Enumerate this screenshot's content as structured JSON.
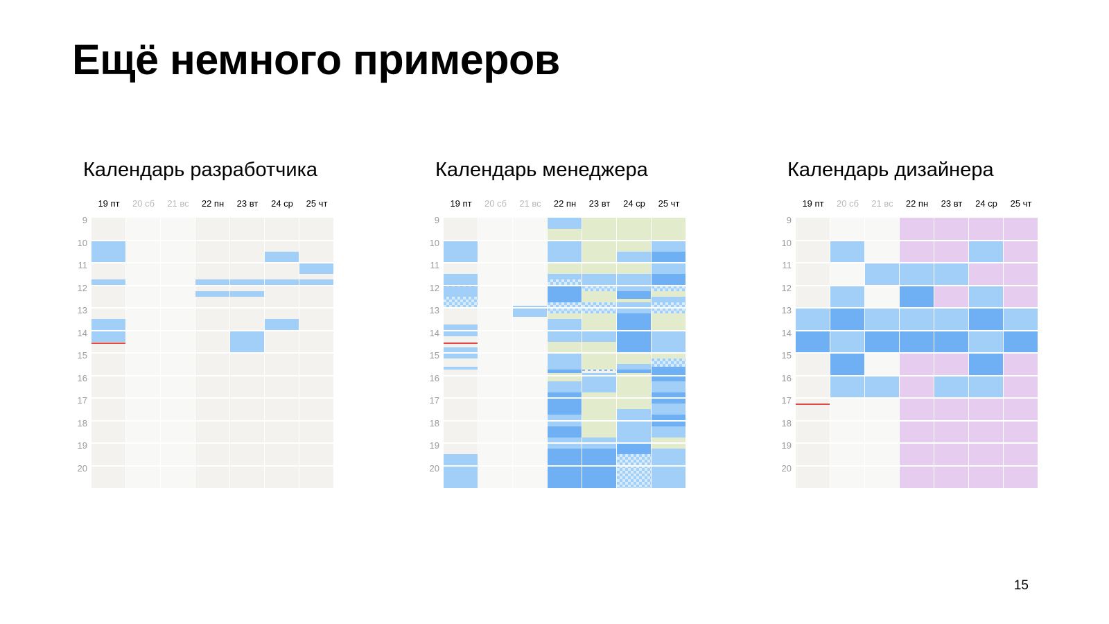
{
  "slide": {
    "title": "Ещё немного примеров",
    "page_number": "15"
  },
  "hours": [
    "9",
    "10",
    "11",
    "12",
    "13",
    "14",
    "15",
    "16",
    "17",
    "18",
    "19",
    "20"
  ],
  "days": [
    {
      "label": "19 пт",
      "weekend": false
    },
    {
      "label": "20 сб",
      "weekend": true
    },
    {
      "label": "21 вс",
      "weekend": true
    },
    {
      "label": "22 пн",
      "weekend": false
    },
    {
      "label": "23 вт",
      "weekend": false
    },
    {
      "label": "24 ср",
      "weekend": false
    },
    {
      "label": "25 чт",
      "weekend": false
    }
  ],
  "calendars": [
    {
      "title": "Календарь разработчика",
      "columns": [
        {
          "bg": "weekday",
          "events": [
            {
              "start": 10.0,
              "end": 11.0,
              "kind": "light"
            },
            {
              "start": 11.75,
              "end": 12.0,
              "kind": "light"
            },
            {
              "start": 13.5,
              "end": 14.5,
              "kind": "light"
            },
            {
              "start": 14.55,
              "end": 14.6,
              "kind": "now"
            }
          ]
        },
        {
          "bg": "weekend",
          "events": []
        },
        {
          "bg": "weekend",
          "events": []
        },
        {
          "bg": "weekday",
          "events": [
            {
              "start": 11.75,
              "end": 12.0,
              "kind": "light"
            },
            {
              "start": 12.25,
              "end": 12.5,
              "kind": "light"
            }
          ]
        },
        {
          "bg": "weekday",
          "events": [
            {
              "start": 11.75,
              "end": 12.0,
              "kind": "light"
            },
            {
              "start": 12.25,
              "end": 12.5,
              "kind": "light"
            },
            {
              "start": 14.0,
              "end": 15.0,
              "kind": "light"
            }
          ]
        },
        {
          "bg": "weekday",
          "events": [
            {
              "start": 10.5,
              "end": 11.0,
              "kind": "light"
            },
            {
              "start": 11.75,
              "end": 12.0,
              "kind": "light"
            },
            {
              "start": 13.5,
              "end": 14.0,
              "kind": "light"
            }
          ]
        },
        {
          "bg": "weekday",
          "events": [
            {
              "start": 11.0,
              "end": 11.5,
              "kind": "light"
            },
            {
              "start": 11.75,
              "end": 12.0,
              "kind": "light"
            }
          ]
        }
      ]
    },
    {
      "title": "Календарь менеджера",
      "columns": [
        {
          "bg": "weekday",
          "events": [
            {
              "start": 10.0,
              "end": 11.0,
              "kind": "light"
            },
            {
              "start": 11.5,
              "end": 12.0,
              "kind": "light"
            },
            {
              "start": 12.0,
              "end": 12.5,
              "kind": "light"
            },
            {
              "start": 12.0,
              "end": 12.05,
              "kind": "dash"
            },
            {
              "start": 12.5,
              "end": 13.0,
              "kind": "hatch"
            },
            {
              "start": 13.75,
              "end": 14.25,
              "kind": "light"
            },
            {
              "start": 14.55,
              "end": 14.6,
              "kind": "now"
            },
            {
              "start": 14.75,
              "end": 15.25,
              "kind": "light"
            },
            {
              "start": 15.6,
              "end": 15.75,
              "kind": "light"
            },
            {
              "start": 19.5,
              "end": 21.0,
              "kind": "light"
            }
          ]
        },
        {
          "bg": "weekend",
          "events": []
        },
        {
          "bg": "weekend",
          "events": [
            {
              "start": 12.9,
              "end": 13.4,
              "kind": "light"
            }
          ]
        },
        {
          "bg": "weekday",
          "events": [
            {
              "start": 9.0,
              "end": 9.5,
              "kind": "light"
            },
            {
              "start": 9.5,
              "end": 10.0,
              "kind": "green"
            },
            {
              "start": 10.0,
              "end": 11.0,
              "kind": "light"
            },
            {
              "start": 11.0,
              "end": 11.5,
              "kind": "green"
            },
            {
              "start": 11.5,
              "end": 11.75,
              "kind": "light"
            },
            {
              "start": 11.75,
              "end": 12.0,
              "kind": "hatch"
            },
            {
              "start": 12.0,
              "end": 12.75,
              "kind": "dark"
            },
            {
              "start": 12.75,
              "end": 13.25,
              "kind": "hatch"
            },
            {
              "start": 13.25,
              "end": 13.5,
              "kind": "green"
            },
            {
              "start": 13.5,
              "end": 14.5,
              "kind": "light"
            },
            {
              "start": 14.5,
              "end": 15.0,
              "kind": "green"
            },
            {
              "start": 15.0,
              "end": 15.75,
              "kind": "light"
            },
            {
              "start": 15.75,
              "end": 15.9,
              "kind": "dark"
            },
            {
              "start": 15.9,
              "end": 16.25,
              "kind": "green"
            },
            {
              "start": 16.25,
              "end": 16.75,
              "kind": "light"
            },
            {
              "start": 16.75,
              "end": 17.75,
              "kind": "dark"
            },
            {
              "start": 17.75,
              "end": 18.25,
              "kind": "light"
            },
            {
              "start": 18.25,
              "end": 18.75,
              "kind": "dark"
            },
            {
              "start": 18.75,
              "end": 19.25,
              "kind": "light"
            },
            {
              "start": 19.25,
              "end": 21.0,
              "kind": "dark"
            }
          ]
        },
        {
          "bg": "weekday",
          "events": [
            {
              "start": 9.0,
              "end": 11.5,
              "kind": "green"
            },
            {
              "start": 11.5,
              "end": 12.0,
              "kind": "light"
            },
            {
              "start": 12.0,
              "end": 12.25,
              "kind": "hatch"
            },
            {
              "start": 12.25,
              "end": 12.75,
              "kind": "green"
            },
            {
              "start": 12.75,
              "end": 13.25,
              "kind": "hatch"
            },
            {
              "start": 13.25,
              "end": 14.0,
              "kind": "green"
            },
            {
              "start": 14.0,
              "end": 14.5,
              "kind": "light"
            },
            {
              "start": 14.5,
              "end": 15.75,
              "kind": "green"
            },
            {
              "start": 15.75,
              "end": 15.9,
              "kind": "dash"
            },
            {
              "start": 15.9,
              "end": 16.75,
              "kind": "light"
            },
            {
              "start": 16.75,
              "end": 18.75,
              "kind": "green"
            },
            {
              "start": 18.75,
              "end": 19.25,
              "kind": "light"
            },
            {
              "start": 19.25,
              "end": 21.0,
              "kind": "dark"
            }
          ]
        },
        {
          "bg": "weekday",
          "events": [
            {
              "start": 9.0,
              "end": 10.0,
              "kind": "green"
            },
            {
              "start": 10.0,
              "end": 10.5,
              "kind": "green"
            },
            {
              "start": 10.5,
              "end": 11.0,
              "kind": "light"
            },
            {
              "start": 11.0,
              "end": 11.5,
              "kind": "green"
            },
            {
              "start": 11.5,
              "end": 12.25,
              "kind": "light"
            },
            {
              "start": 12.25,
              "end": 12.6,
              "kind": "dark"
            },
            {
              "start": 12.6,
              "end": 12.75,
              "kind": "green"
            },
            {
              "start": 12.75,
              "end": 13.25,
              "kind": "light"
            },
            {
              "start": 13.25,
              "end": 15.0,
              "kind": "dark"
            },
            {
              "start": 15.0,
              "end": 15.5,
              "kind": "green"
            },
            {
              "start": 15.5,
              "end": 15.75,
              "kind": "light"
            },
            {
              "start": 15.75,
              "end": 15.9,
              "kind": "dark"
            },
            {
              "start": 15.9,
              "end": 16.75,
              "kind": "green"
            },
            {
              "start": 16.75,
              "end": 17.5,
              "kind": "green"
            },
            {
              "start": 17.5,
              "end": 19.0,
              "kind": "light"
            },
            {
              "start": 19.0,
              "end": 19.5,
              "kind": "dark"
            },
            {
              "start": 19.5,
              "end": 21.0,
              "kind": "hatch"
            }
          ]
        },
        {
          "bg": "weekday",
          "events": [
            {
              "start": 9.0,
              "end": 10.0,
              "kind": "green"
            },
            {
              "start": 10.0,
              "end": 10.5,
              "kind": "light"
            },
            {
              "start": 10.5,
              "end": 11.0,
              "kind": "dark"
            },
            {
              "start": 11.0,
              "end": 11.5,
              "kind": "light"
            },
            {
              "start": 11.5,
              "end": 12.0,
              "kind": "dark"
            },
            {
              "start": 12.0,
              "end": 12.25,
              "kind": "hatch"
            },
            {
              "start": 12.25,
              "end": 12.5,
              "kind": "green"
            },
            {
              "start": 12.5,
              "end": 12.75,
              "kind": "light"
            },
            {
              "start": 12.75,
              "end": 13.25,
              "kind": "hatch"
            },
            {
              "start": 13.25,
              "end": 14.0,
              "kind": "green"
            },
            {
              "start": 14.0,
              "end": 15.0,
              "kind": "light"
            },
            {
              "start": 15.0,
              "end": 15.25,
              "kind": "green"
            },
            {
              "start": 15.25,
              "end": 15.6,
              "kind": "hatch"
            },
            {
              "start": 15.6,
              "end": 16.25,
              "kind": "dark"
            },
            {
              "start": 16.25,
              "end": 16.75,
              "kind": "light"
            },
            {
              "start": 16.75,
              "end": 17.25,
              "kind": "dark"
            },
            {
              "start": 17.25,
              "end": 17.75,
              "kind": "light"
            },
            {
              "start": 17.75,
              "end": 18.25,
              "kind": "dark"
            },
            {
              "start": 18.25,
              "end": 18.75,
              "kind": "light"
            },
            {
              "start": 18.75,
              "end": 19.25,
              "kind": "green"
            },
            {
              "start": 19.25,
              "end": 21.0,
              "kind": "light"
            }
          ]
        }
      ]
    },
    {
      "title": "Календарь дизайнера",
      "columns": [
        {
          "bg": "weekday",
          "events": [
            {
              "start": 13.0,
              "end": 14.0,
              "kind": "light"
            },
            {
              "start": 14.0,
              "end": 15.0,
              "kind": "dark"
            },
            {
              "start": 17.25,
              "end": 17.3,
              "kind": "now"
            }
          ]
        },
        {
          "bg": "weekend",
          "events": [
            {
              "start": 10.0,
              "end": 11.0,
              "kind": "light"
            },
            {
              "start": 12.0,
              "end": 13.0,
              "kind": "light"
            },
            {
              "start": 13.0,
              "end": 14.0,
              "kind": "dark"
            },
            {
              "start": 14.0,
              "end": 15.0,
              "kind": "light"
            },
            {
              "start": 15.0,
              "end": 16.0,
              "kind": "dark"
            },
            {
              "start": 16.0,
              "end": 17.0,
              "kind": "light"
            }
          ]
        },
        {
          "bg": "weekend",
          "events": [
            {
              "start": 11.0,
              "end": 12.0,
              "kind": "light"
            },
            {
              "start": 13.0,
              "end": 14.0,
              "kind": "light"
            },
            {
              "start": 14.0,
              "end": 15.0,
              "kind": "dark"
            },
            {
              "start": 16.0,
              "end": 17.0,
              "kind": "light"
            }
          ]
        },
        {
          "bg": "weekday",
          "events": [
            {
              "start": 9.0,
              "end": 11.0,
              "kind": "purple"
            },
            {
              "start": 11.0,
              "end": 12.0,
              "kind": "light"
            },
            {
              "start": 12.0,
              "end": 13.0,
              "kind": "dark"
            },
            {
              "start": 13.0,
              "end": 14.0,
              "kind": "light"
            },
            {
              "start": 14.0,
              "end": 15.0,
              "kind": "dark"
            },
            {
              "start": 15.0,
              "end": 21.0,
              "kind": "purple"
            }
          ]
        },
        {
          "bg": "weekday",
          "events": [
            {
              "start": 9.0,
              "end": 11.0,
              "kind": "purple"
            },
            {
              "start": 11.0,
              "end": 12.0,
              "kind": "light"
            },
            {
              "start": 12.0,
              "end": 13.0,
              "kind": "purple"
            },
            {
              "start": 13.0,
              "end": 14.0,
              "kind": "light"
            },
            {
              "start": 14.0,
              "end": 15.0,
              "kind": "dark"
            },
            {
              "start": 15.0,
              "end": 16.0,
              "kind": "purple"
            },
            {
              "start": 16.0,
              "end": 17.0,
              "kind": "light"
            },
            {
              "start": 17.0,
              "end": 21.0,
              "kind": "purple"
            }
          ]
        },
        {
          "bg": "weekday",
          "events": [
            {
              "start": 9.0,
              "end": 10.0,
              "kind": "purple"
            },
            {
              "start": 10.0,
              "end": 11.0,
              "kind": "light"
            },
            {
              "start": 11.0,
              "end": 12.0,
              "kind": "purple"
            },
            {
              "start": 12.0,
              "end": 13.0,
              "kind": "light"
            },
            {
              "start": 13.0,
              "end": 14.0,
              "kind": "dark"
            },
            {
              "start": 14.0,
              "end": 15.0,
              "kind": "light"
            },
            {
              "start": 15.0,
              "end": 16.0,
              "kind": "dark"
            },
            {
              "start": 16.0,
              "end": 17.0,
              "kind": "light"
            },
            {
              "start": 17.0,
              "end": 21.0,
              "kind": "purple"
            }
          ]
        },
        {
          "bg": "weekday",
          "events": [
            {
              "start": 9.0,
              "end": 13.0,
              "kind": "purple"
            },
            {
              "start": 13.0,
              "end": 14.0,
              "kind": "light"
            },
            {
              "start": 14.0,
              "end": 15.0,
              "kind": "dark"
            },
            {
              "start": 15.0,
              "end": 21.0,
              "kind": "purple"
            }
          ]
        }
      ]
    }
  ]
}
